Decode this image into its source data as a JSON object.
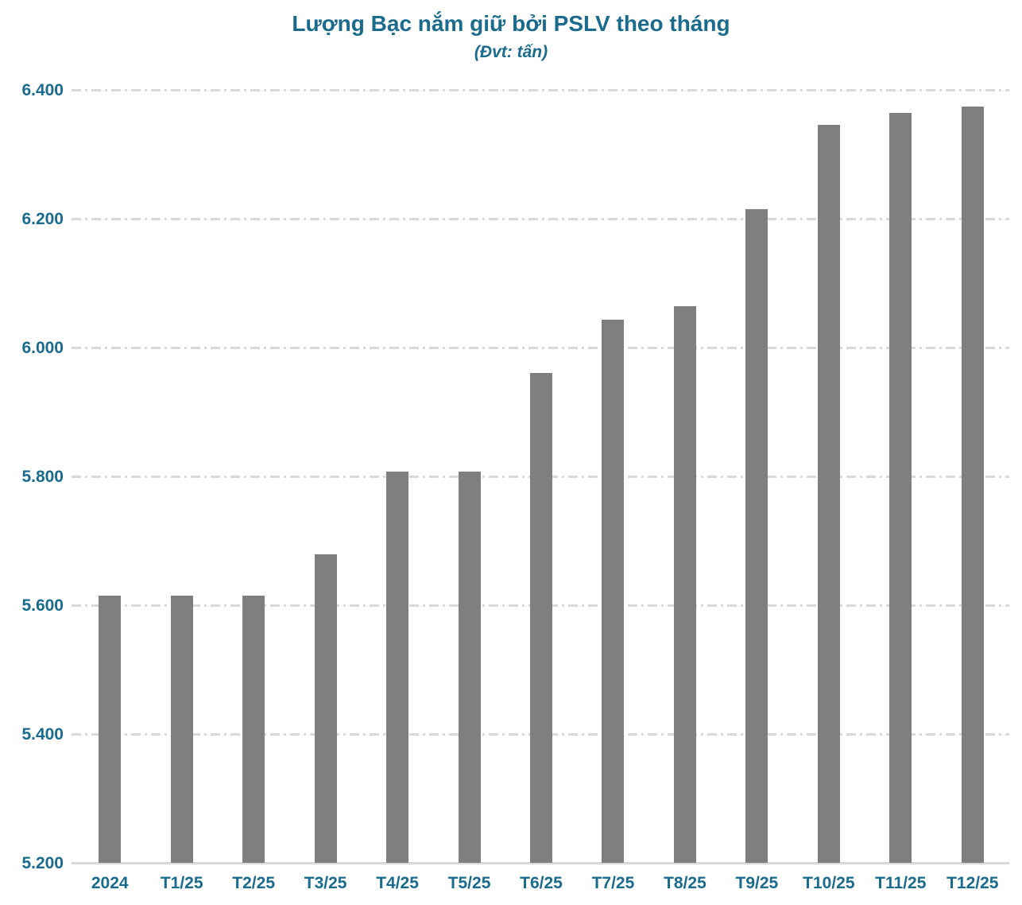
{
  "chart_data": {
    "type": "bar",
    "title": "Lượng Bạc nắm giữ bởi PSLV theo tháng",
    "subtitle": "(Đvt: tấn)",
    "categories": [
      "2024",
      "T1/25",
      "T2/25",
      "T3/25",
      "T4/25",
      "T5/25",
      "T6/25",
      "T7/25",
      "T8/25",
      "T9/25",
      "T10/25",
      "T11/25",
      "T12/25"
    ],
    "values": [
      5615,
      5615,
      5615,
      5679,
      5808,
      5808,
      5960,
      6043,
      6064,
      6215,
      6346,
      6364,
      6374
    ],
    "xlabel": "",
    "ylabel": "",
    "ylim": [
      5200,
      6400
    ],
    "ytick_step": 200,
    "ytick_labels": [
      "5.200",
      "5.400",
      "5.600",
      "5.800",
      "6.000",
      "6.200",
      "6.400"
    ],
    "grid": "horizontal dash-dot",
    "legend_position": "none",
    "colors": {
      "bar": "#7f7f7f",
      "text": "#1a6b8c",
      "gridline": "#d9d9d9"
    }
  }
}
